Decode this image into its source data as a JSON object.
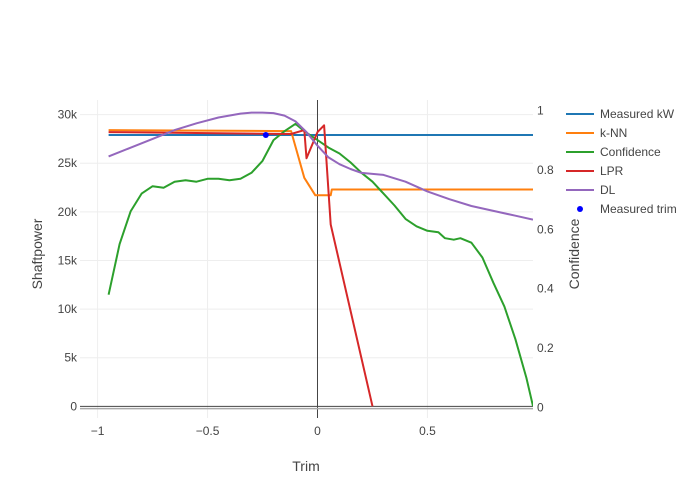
{
  "chart_data": {
    "type": "line",
    "xlabel": "Trim",
    "ylabel_left": "Shaftpower",
    "ylabel_right": "Confidence",
    "xlim": [
      -1.08,
      0.98
    ],
    "ylim_left": [
      -1200,
      31500
    ],
    "ylim_right": [
      -0.035,
      1.035
    ],
    "x_ticks": [
      -1,
      -0.5,
      0,
      0.5
    ],
    "x_tick_labels": [
      "−1",
      "−0.5",
      "0",
      "0.5"
    ],
    "y_left_ticks": [
      0,
      5000,
      10000,
      15000,
      20000,
      25000,
      30000
    ],
    "y_left_tick_labels": [
      "0",
      "5k",
      "10k",
      "15k",
      "20k",
      "25k",
      "30k"
    ],
    "y_right_ticks": [
      0,
      0.2,
      0.4,
      0.6,
      0.8,
      1
    ],
    "y_right_tick_labels": [
      "0",
      "0.2",
      "0.4",
      "0.6",
      "0.8",
      "1"
    ],
    "grid": true,
    "legend_position": "top-right",
    "series": [
      {
        "name": "Measured kW",
        "color": "#1f77b4",
        "axis": "left",
        "x": [
          -0.95,
          0.98
        ],
        "y": [
          27900,
          27900
        ]
      },
      {
        "name": "k-NN",
        "color": "#ff7f0e",
        "axis": "left",
        "x": [
          -0.95,
          -0.12,
          -0.06,
          -0.01,
          0.06,
          0.065,
          0.98
        ],
        "y": [
          28400,
          28300,
          23500,
          21700,
          21700,
          22300,
          22300
        ]
      },
      {
        "name": "Confidence",
        "color": "#2ca02c",
        "axis": "right",
        "x": [
          -0.95,
          -0.9,
          -0.85,
          -0.8,
          -0.75,
          -0.7,
          -0.65,
          -0.6,
          -0.55,
          -0.5,
          -0.45,
          -0.4,
          -0.35,
          -0.3,
          -0.25,
          -0.2,
          -0.15,
          -0.1,
          -0.06,
          0,
          0.05,
          0.1,
          0.15,
          0.2,
          0.25,
          0.3,
          0.35,
          0.4,
          0.45,
          0.5,
          0.55,
          0.58,
          0.62,
          0.65,
          0.7,
          0.75,
          0.8,
          0.85,
          0.9,
          0.95,
          0.98
        ],
        "y": [
          0.38,
          0.55,
          0.66,
          0.72,
          0.745,
          0.74,
          0.76,
          0.765,
          0.76,
          0.77,
          0.77,
          0.765,
          0.77,
          0.79,
          0.83,
          0.9,
          0.93,
          0.955,
          0.93,
          0.9,
          0.875,
          0.855,
          0.825,
          0.79,
          0.76,
          0.72,
          0.68,
          0.635,
          0.61,
          0.595,
          0.59,
          0.57,
          0.565,
          0.57,
          0.555,
          0.505,
          0.42,
          0.34,
          0.23,
          0.1,
          0.005
        ]
      },
      {
        "name": "LPR",
        "color": "#d62728",
        "axis": "left",
        "x": [
          -0.95,
          -0.5,
          -0.12,
          -0.06,
          -0.05,
          0,
          0.03,
          0.06,
          0.25
        ],
        "y": [
          28200,
          28100,
          28000,
          28400,
          25500,
          28200,
          28900,
          18700,
          0
        ]
      },
      {
        "name": "DL",
        "color": "#9467bd",
        "axis": "left",
        "x": [
          -0.95,
          -0.85,
          -0.75,
          -0.65,
          -0.55,
          -0.45,
          -0.35,
          -0.3,
          -0.25,
          -0.2,
          -0.15,
          -0.1,
          -0.05,
          0,
          0.05,
          0.1,
          0.15,
          0.2,
          0.3,
          0.4,
          0.5,
          0.6,
          0.7,
          0.8,
          0.9,
          0.98
        ],
        "y": [
          25700,
          26600,
          27500,
          28400,
          29100,
          29700,
          30100,
          30200,
          30200,
          30150,
          29900,
          29300,
          28200,
          26800,
          25600,
          24900,
          24400,
          24000,
          23800,
          23100,
          22100,
          21300,
          20600,
          20100,
          19600,
          19200
        ]
      },
      {
        "name": "Measured trim",
        "color": "#0000ff",
        "axis": "left",
        "mode": "markers",
        "x": [
          -0.235
        ],
        "y": [
          27900
        ]
      }
    ]
  }
}
